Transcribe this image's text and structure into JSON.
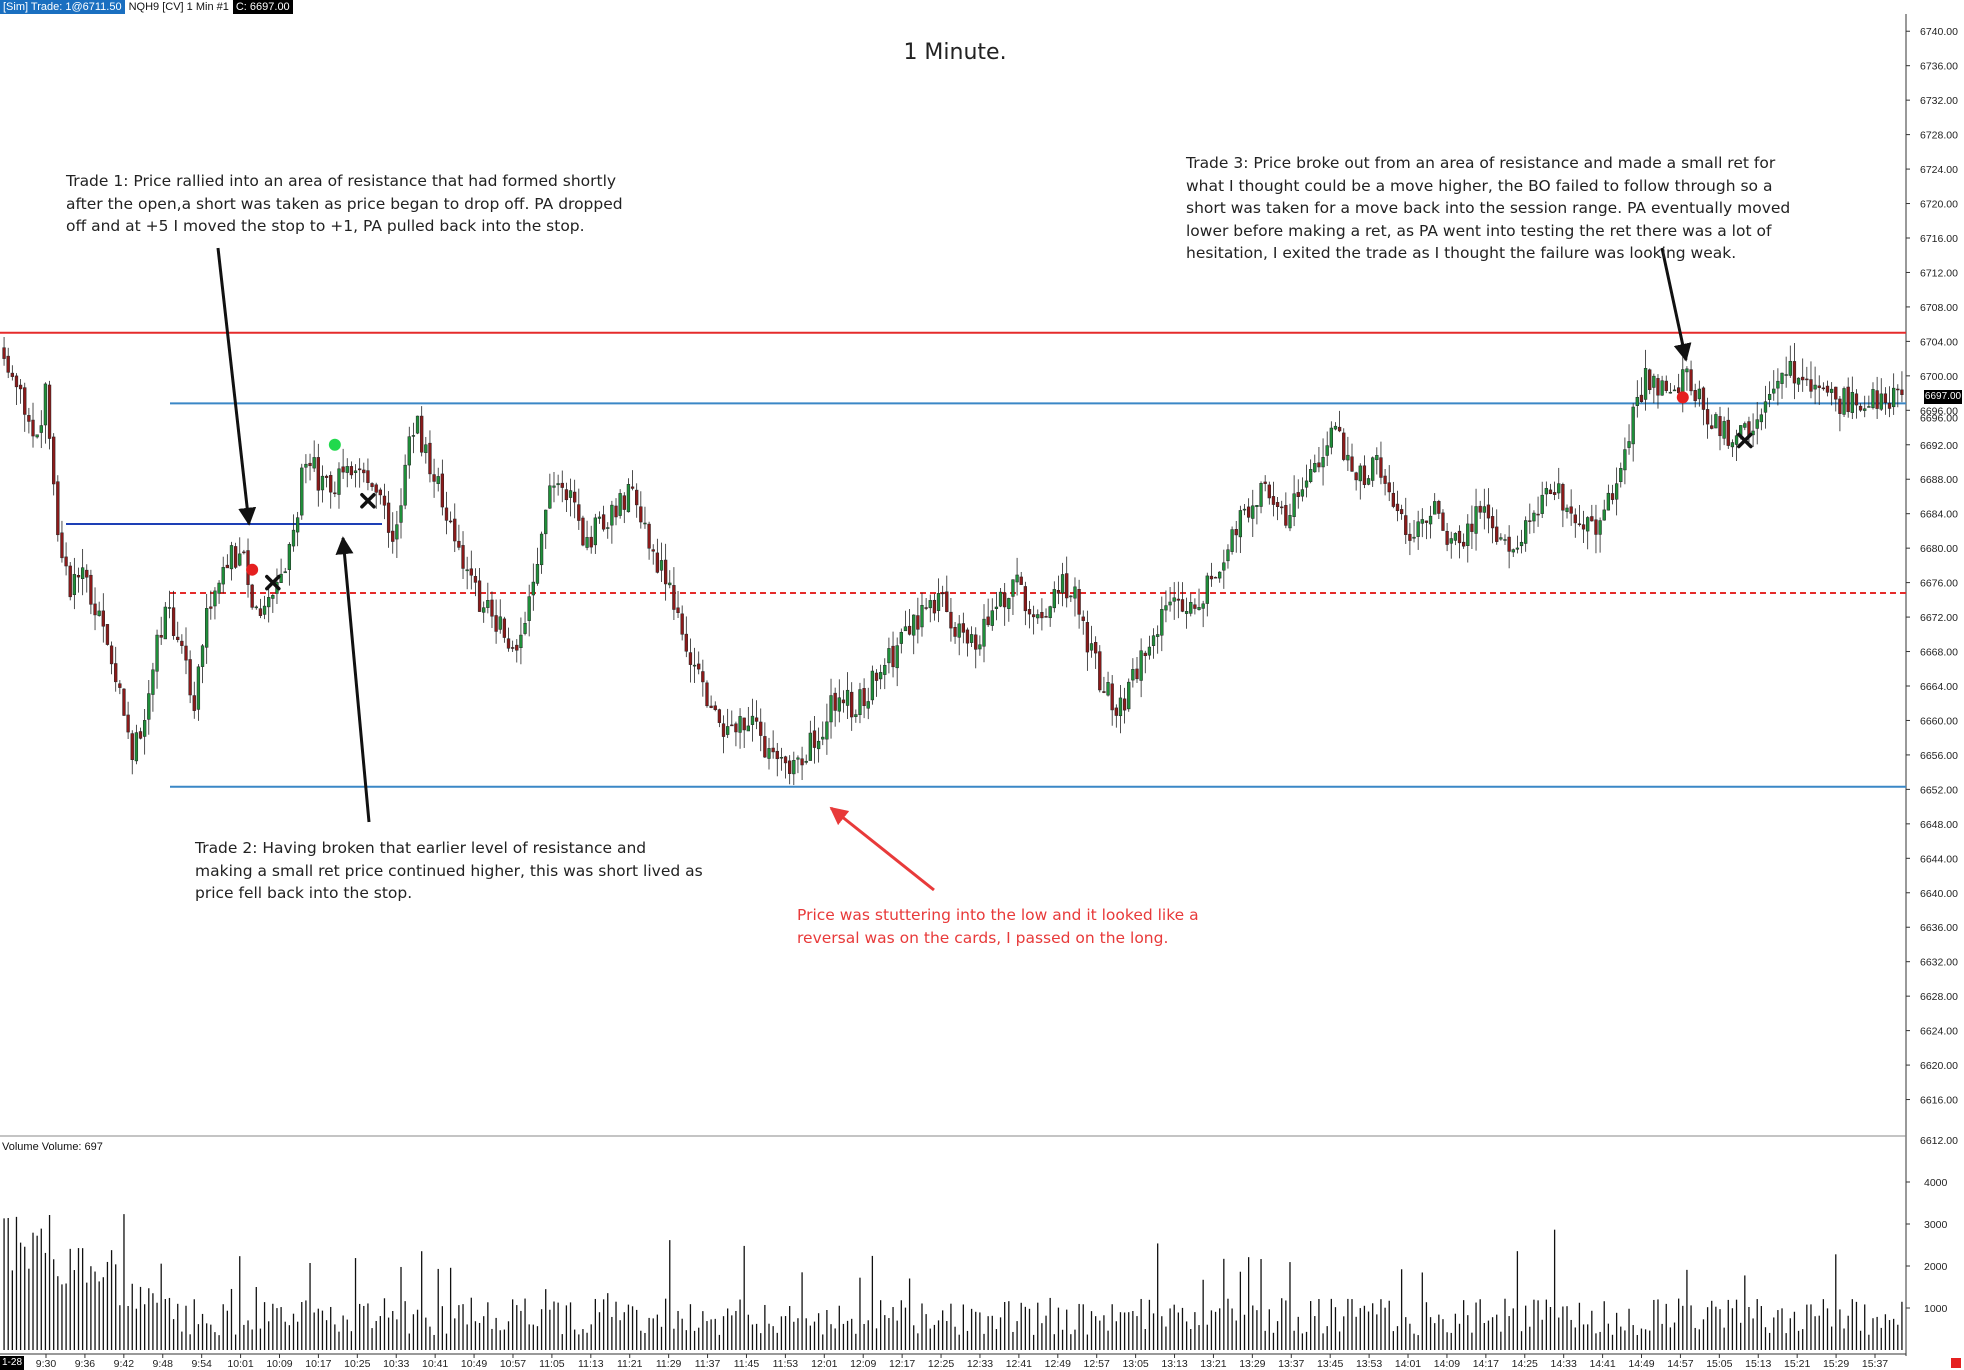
{
  "header": {
    "account": "[Sim]  Trade: 1@6711.50",
    "instrument": "NQH9 [CV]  1 Min   #1",
    "close": "C: 6697.00"
  },
  "chart_data": {
    "type": "candlestick",
    "title": "1 Minute.",
    "y_range": [
      6612,
      6742
    ],
    "y_ticks": [
      6616,
      6620,
      6624,
      6628,
      6632,
      6636,
      6640,
      6644,
      6648,
      6652,
      6656,
      6660,
      6664,
      6668,
      6672,
      6676,
      6680,
      6684,
      6688,
      6692,
      6696,
      6700,
      6704,
      6708,
      6712,
      6716,
      6720,
      6724,
      6728,
      6732,
      6736,
      6740
    ],
    "y_tick_labels": [
      "6616.00",
      "6620.00",
      "6624.00",
      "6628.00",
      "6632.00",
      "6636.00",
      "6640.00",
      "6644.00",
      "6648.00",
      "6652.00",
      "6656.00",
      "6660.00",
      "6664.00",
      "6668.00",
      "6672.00",
      "6676.00",
      "6680.00",
      "6684.00",
      "6688.00",
      "6692.00",
      "6696.00",
      "6700.00",
      "6704.00",
      "6708.00",
      "6712.00",
      "6716.00",
      "6720.00",
      "6724.00",
      "6728.00",
      "6732.00",
      "6736.00",
      "6740.00"
    ],
    "partial_top_tick": "6612.00",
    "last_price_label": "6697.00",
    "hidden_price_label": "6696.00",
    "x_tick_labels": [
      "9:30",
      "9:36",
      "9:42",
      "9:48",
      "9:54",
      "10:01",
      "10:09",
      "10:17",
      "10:25",
      "10:33",
      "10:41",
      "10:49",
      "10:57",
      "11:05",
      "11:13",
      "11:21",
      "11:29",
      "11:37",
      "11:45",
      "11:53",
      "12:01",
      "12:09",
      "12:17",
      "12:25",
      "12:33",
      "12:41",
      "12:49",
      "12:57",
      "13:05",
      "13:13",
      "13:21",
      "13:29",
      "13:37",
      "13:45",
      "13:53",
      "14:01",
      "14:09",
      "14:17",
      "14:25",
      "14:33",
      "14:41",
      "14:49",
      "14:57",
      "15:05",
      "15:13",
      "15:21",
      "15:29",
      "15:37"
    ],
    "date_label": "1-28",
    "price_path": [
      [
        0,
        6702
      ],
      [
        4,
        6697
      ],
      [
        8,
        6692
      ],
      [
        10,
        6698
      ],
      [
        13,
        6680
      ],
      [
        16,
        6675
      ],
      [
        19,
        6678
      ],
      [
        22,
        6672
      ],
      [
        25,
        6670
      ],
      [
        28,
        6663
      ],
      [
        31,
        6657
      ],
      [
        34,
        6660
      ],
      [
        37,
        6670
      ],
      [
        40,
        6673
      ],
      [
        43,
        6668
      ],
      [
        46,
        6662
      ],
      [
        49,
        6672
      ],
      [
        52,
        6677
      ],
      [
        55,
        6680
      ],
      [
        58,
        6678
      ],
      [
        61,
        6673
      ],
      [
        64,
        6674
      ],
      [
        67,
        6676
      ],
      [
        70,
        6682
      ],
      [
        73,
        6691
      ],
      [
        76,
        6688
      ],
      [
        79,
        6687
      ],
      [
        82,
        6689
      ],
      [
        85,
        6690
      ],
      [
        88,
        6688
      ],
      [
        91,
        6686
      ],
      [
        94,
        6680
      ],
      [
        96,
        6686
      ],
      [
        98,
        6692
      ],
      [
        100,
        6694
      ],
      [
        103,
        6689
      ],
      [
        106,
        6686
      ],
      [
        109,
        6681
      ],
      [
        112,
        6678
      ],
      [
        115,
        6674
      ],
      [
        118,
        6672
      ],
      [
        121,
        6670
      ],
      [
        124,
        6667
      ],
      [
        127,
        6674
      ],
      [
        130,
        6681
      ],
      [
        132,
        6688
      ],
      [
        135,
        6688
      ],
      [
        138,
        6684
      ],
      [
        141,
        6680
      ],
      [
        144,
        6683
      ],
      [
        147,
        6684
      ],
      [
        150,
        6686
      ],
      [
        152,
        6688
      ],
      [
        154,
        6683
      ],
      [
        157,
        6679
      ],
      [
        160,
        6676
      ],
      [
        163,
        6672
      ],
      [
        166,
        6668
      ],
      [
        169,
        6664
      ],
      [
        172,
        6660
      ],
      [
        175,
        6658
      ],
      [
        178,
        6661
      ],
      [
        181,
        6659
      ],
      [
        184,
        6657
      ],
      [
        187,
        6656
      ],
      [
        190,
        6653
      ],
      [
        193,
        6656
      ],
      [
        196,
        6658
      ],
      [
        199,
        6660
      ],
      [
        202,
        6664
      ],
      [
        205,
        6661
      ],
      [
        208,
        6663
      ],
      [
        211,
        6665
      ],
      [
        214,
        6667
      ],
      [
        217,
        6669
      ],
      [
        220,
        6671
      ],
      [
        223,
        6673
      ],
      [
        226,
        6674
      ],
      [
        229,
        6672
      ],
      [
        232,
        6670
      ],
      [
        235,
        6669
      ],
      [
        238,
        6672
      ],
      [
        241,
        6674
      ],
      [
        244,
        6676
      ],
      [
        247,
        6674
      ],
      [
        250,
        6672
      ],
      [
        253,
        6674
      ],
      [
        256,
        6676
      ],
      [
        259,
        6674
      ],
      [
        262,
        6669
      ],
      [
        265,
        6665
      ],
      [
        268,
        6662
      ],
      [
        271,
        6662
      ],
      [
        274,
        6666
      ],
      [
        277,
        6670
      ],
      [
        280,
        6672
      ],
      [
        283,
        6673
      ],
      [
        286,
        6674
      ],
      [
        289,
        6673
      ],
      [
        292,
        6677
      ],
      [
        295,
        6679
      ],
      [
        298,
        6682
      ],
      [
        301,
        6685
      ],
      [
        304,
        6687
      ],
      [
        307,
        6686
      ],
      [
        310,
        6684
      ],
      [
        313,
        6686
      ],
      [
        316,
        6689
      ],
      [
        319,
        6692
      ],
      [
        322,
        6694
      ],
      [
        325,
        6690
      ],
      [
        328,
        6688
      ],
      [
        331,
        6690
      ],
      [
        334,
        6688
      ],
      [
        337,
        6684
      ],
      [
        340,
        6681
      ],
      [
        343,
        6683
      ],
      [
        346,
        6684
      ],
      [
        349,
        6682
      ],
      [
        352,
        6680
      ],
      [
        355,
        6683
      ],
      [
        358,
        6685
      ],
      [
        361,
        6682
      ],
      [
        364,
        6679
      ],
      [
        367,
        6681
      ],
      [
        370,
        6684
      ],
      [
        373,
        6687
      ],
      [
        376,
        6686
      ],
      [
        379,
        6684
      ],
      [
        382,
        6683
      ],
      [
        385,
        6681
      ],
      [
        388,
        6685
      ],
      [
        391,
        6689
      ],
      [
        394,
        6695
      ],
      [
        397,
        6700
      ],
      [
        400,
        6699
      ],
      [
        403,
        6697
      ],
      [
        406,
        6700
      ],
      [
        409,
        6698
      ],
      [
        412,
        6695
      ],
      [
        415,
        6694
      ],
      [
        418,
        6692
      ],
      [
        420,
        6693
      ],
      [
        423,
        6694
      ],
      [
        426,
        6696
      ],
      [
        429,
        6698
      ],
      [
        432,
        6701
      ],
      [
        435,
        6700
      ],
      [
        438,
        6699
      ],
      [
        441,
        6698
      ],
      [
        444,
        6697
      ],
      [
        447,
        6697
      ],
      [
        450,
        6697
      ],
      [
        453,
        6697
      ],
      [
        456,
        6697
      ],
      [
        459,
        6697
      ]
    ],
    "levels": [
      {
        "price": 6705,
        "color": "#e52b2b",
        "style": "solid"
      },
      {
        "price": 6696.8,
        "color": "#3a87c6",
        "style": "solid"
      },
      {
        "price": 6682.8,
        "color": "#1d3fb5",
        "style": "solid"
      },
      {
        "price": 6674.8,
        "color": "#e52b2b",
        "style": "dashed"
      },
      {
        "price": 6652.3,
        "color": "#3a87c6",
        "style": "solid"
      }
    ],
    "markers": [
      {
        "type": "entry-short",
        "color": "#e52020",
        "x": 60,
        "price": 6677.5
      },
      {
        "type": "exit",
        "color": "#111111",
        "x": 65,
        "price": 6676
      },
      {
        "type": "entry-short",
        "color": "#21d94d",
        "x": 80,
        "price": 6692
      },
      {
        "type": "exit",
        "color": "#111111",
        "x": 88,
        "price": 6685.5
      },
      {
        "type": "entry-short",
        "color": "#e52020",
        "x": 406,
        "price": 6697.5
      },
      {
        "type": "exit",
        "color": "#111111",
        "x": 421,
        "price": 6692.5
      }
    ],
    "volume": {
      "label": "Volume  Volume: 697",
      "y_range": [
        0,
        5000
      ],
      "y_ticks": [
        1000,
        2000,
        3000,
        4000
      ],
      "y_tick_labels": [
        "1000",
        "2000",
        "3000",
        "4000"
      ]
    }
  },
  "notes": {
    "trade1": "Trade 1:  Price rallied into an area of resistance that had formed shortly after the open,a short was taken as price began to drop off.  PA dropped off and at +5 I moved the stop to +1, PA pulled back into the stop.",
    "trade2": "Trade 2:  Having broken that earlier level of resistance and making a small ret price continued higher, this was short lived as price fell back into the stop.",
    "trade3": "Trade 3:  Price broke out from an area of resistance and made a small ret for what I thought could be a move higher, the BO failed to follow through so a short was taken for a move back into the session range.  PA eventually moved lower before making a ret, as PA went into testing the ret there was a lot of hesitation, I exited the trade as I thought the failure was looking weak.",
    "reversal": "Price was stuttering into the low and it looked like a reversal was on the cards, I passed on the long."
  }
}
